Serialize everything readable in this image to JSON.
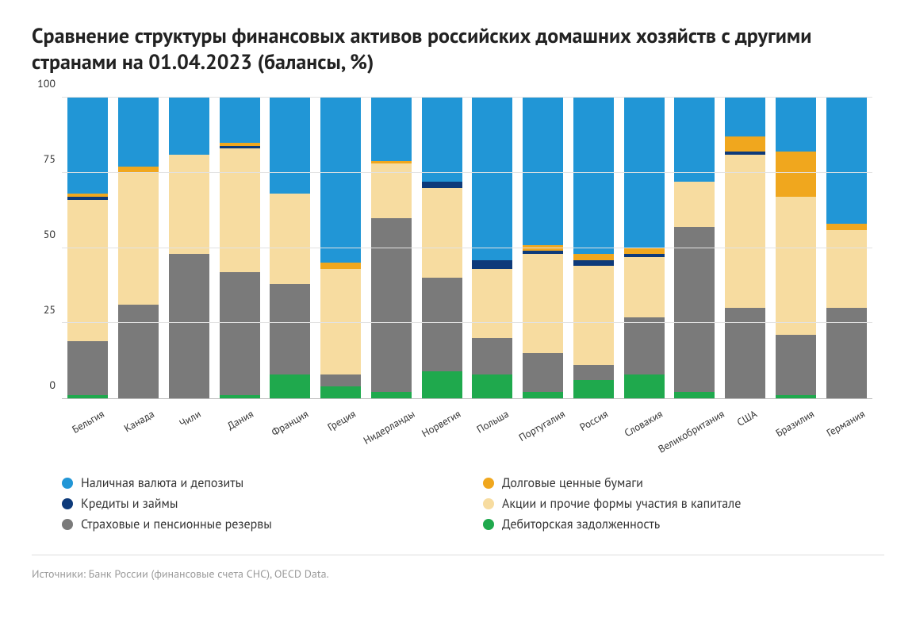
{
  "title": "Сравнение структуры финансовых активов российских домашних хозяйств с другими странами на 01.04.2023 (балансы, %)",
  "source": "Источники: Банк России (финансовые счета СНС), OECD Data.",
  "chart": {
    "type": "stacked-bar",
    "ylim": [
      0,
      100
    ],
    "yticks": [
      0,
      25,
      50,
      75,
      100
    ],
    "tick_fontsize": 14,
    "xlabel_fontsize": 13,
    "xlabel_rotation_deg": -30,
    "bar_width": 0.88,
    "background_color": "#ffffff",
    "grid_color": "#e2e2e2",
    "axis_line_color": "#bbbbbb",
    "divider_color": "#dcdcdc",
    "source_color": "#9a9a9a",
    "series": [
      {
        "key": "cash_deposits",
        "label": "Наличная валюта и депозиты",
        "color": "#2196d6"
      },
      {
        "key": "debt_securities",
        "label": "Долговые ценные бумаги",
        "color": "#f0a71e"
      },
      {
        "key": "loans",
        "label": "Кредиты и займы",
        "color": "#0d3a7a"
      },
      {
        "key": "equity",
        "label": "Акции и прочие формы участия в капитале",
        "color": "#f7dca0"
      },
      {
        "key": "insurance_pension",
        "label": "Страховые и пенсионные резервы",
        "color": "#7a7a7a"
      },
      {
        "key": "receivables",
        "label": "Дебиторская задолженность",
        "color": "#1fa94d"
      }
    ],
    "legend_order": [
      "cash_deposits",
      "debt_securities",
      "loans",
      "equity",
      "insurance_pension",
      "receivables"
    ],
    "stack_order_bottom_to_top": [
      "receivables",
      "insurance_pension",
      "equity",
      "loans",
      "debt_securities",
      "cash_deposits"
    ],
    "categories": [
      {
        "label": "Бельгия",
        "values": {
          "receivables": 1,
          "insurance_pension": 18,
          "equity": 47,
          "loans": 1,
          "debt_securities": 1,
          "cash_deposits": 32
        }
      },
      {
        "label": "Канада",
        "values": {
          "receivables": 0,
          "insurance_pension": 31,
          "equity": 44,
          "loans": 0,
          "debt_securities": 2,
          "cash_deposits": 23
        }
      },
      {
        "label": "Чили",
        "values": {
          "receivables": 0,
          "insurance_pension": 48,
          "equity": 33,
          "loans": 0,
          "debt_securities": 0,
          "cash_deposits": 19
        }
      },
      {
        "label": "Дания",
        "values": {
          "receivables": 1,
          "insurance_pension": 41,
          "equity": 41,
          "loans": 1,
          "debt_securities": 1,
          "cash_deposits": 15
        }
      },
      {
        "label": "Франция",
        "values": {
          "receivables": 8,
          "insurance_pension": 30,
          "equity": 30,
          "loans": 0,
          "debt_securities": 0,
          "cash_deposits": 32
        }
      },
      {
        "label": "Греция",
        "values": {
          "receivables": 4,
          "insurance_pension": 4,
          "equity": 35,
          "loans": 0,
          "debt_securities": 2,
          "cash_deposits": 55
        }
      },
      {
        "label": "Нидерланды",
        "values": {
          "receivables": 2,
          "insurance_pension": 58,
          "equity": 18,
          "loans": 0,
          "debt_securities": 1,
          "cash_deposits": 21
        }
      },
      {
        "label": "Норвегия",
        "values": {
          "receivables": 9,
          "insurance_pension": 31,
          "equity": 30,
          "loans": 2,
          "debt_securities": 0,
          "cash_deposits": 28
        }
      },
      {
        "label": "Польша",
        "values": {
          "receivables": 8,
          "insurance_pension": 12,
          "equity": 23,
          "loans": 3,
          "debt_securities": 0,
          "cash_deposits": 54
        }
      },
      {
        "label": "Португалия",
        "values": {
          "receivables": 2,
          "insurance_pension": 13,
          "equity": 33,
          "loans": 1,
          "debt_securities": 2,
          "cash_deposits": 49
        }
      },
      {
        "label": "Россия",
        "values": {
          "receivables": 6,
          "insurance_pension": 5,
          "equity": 33,
          "loans": 2,
          "debt_securities": 2,
          "cash_deposits": 52
        }
      },
      {
        "label": "Словакия",
        "values": {
          "receivables": 8,
          "insurance_pension": 19,
          "equity": 20,
          "loans": 1,
          "debt_securities": 2,
          "cash_deposits": 50
        }
      },
      {
        "label": "Великобритания",
        "values": {
          "receivables": 2,
          "insurance_pension": 55,
          "equity": 15,
          "loans": 0,
          "debt_securities": 0,
          "cash_deposits": 28
        }
      },
      {
        "label": "США",
        "values": {
          "receivables": 0,
          "insurance_pension": 30,
          "equity": 51,
          "loans": 1,
          "debt_securities": 5,
          "cash_deposits": 13
        }
      },
      {
        "label": "Бразилия",
        "values": {
          "receivables": 1,
          "insurance_pension": 20,
          "equity": 46,
          "loans": 0,
          "debt_securities": 15,
          "cash_deposits": 18
        }
      },
      {
        "label": "Германия",
        "values": {
          "receivables": 0,
          "insurance_pension": 30,
          "equity": 26,
          "loans": 0,
          "debt_securities": 2,
          "cash_deposits": 42
        }
      }
    ]
  }
}
